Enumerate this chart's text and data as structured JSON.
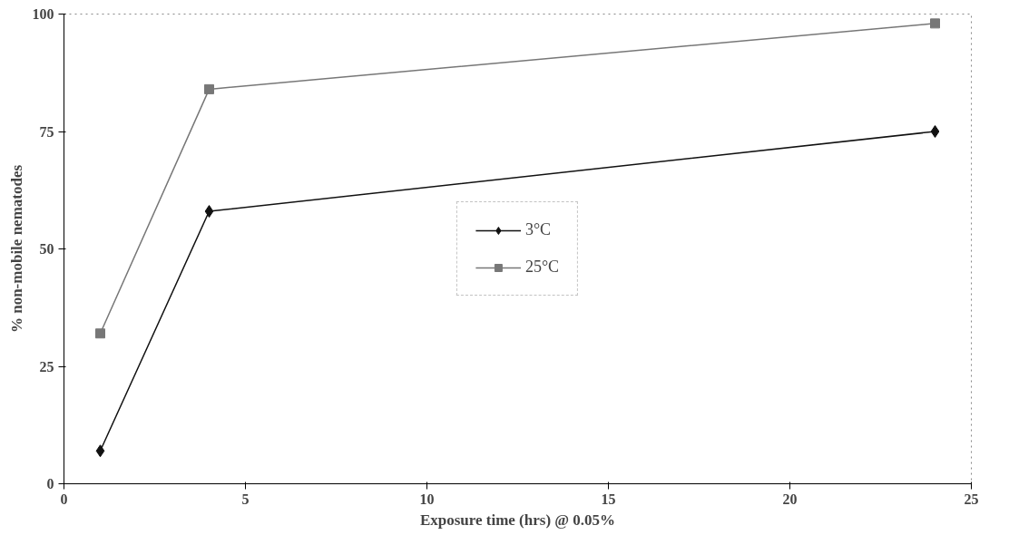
{
  "chart_data": {
    "type": "line",
    "xlabel": "Exposure time (hrs) @ 0.05%",
    "ylabel": "% non-mobile nematodes",
    "xlim": [
      0,
      25
    ],
    "xticks": [
      0,
      5,
      10,
      15,
      20,
      25
    ],
    "ylim": [
      0,
      100
    ],
    "yticks": [
      0,
      25,
      50,
      75,
      100
    ],
    "grid": false,
    "legend": "center",
    "line_style": "solid",
    "series": [
      {
        "name": "3°C",
        "color": "#111111",
        "marker": "diamond",
        "x": [
          1,
          4,
          24
        ],
        "values": [
          7,
          58,
          75
        ]
      },
      {
        "name": "25°C",
        "color": "#777777",
        "marker": "square",
        "x": [
          1,
          4,
          24
        ],
        "values": [
          32,
          84,
          98
        ]
      }
    ]
  }
}
